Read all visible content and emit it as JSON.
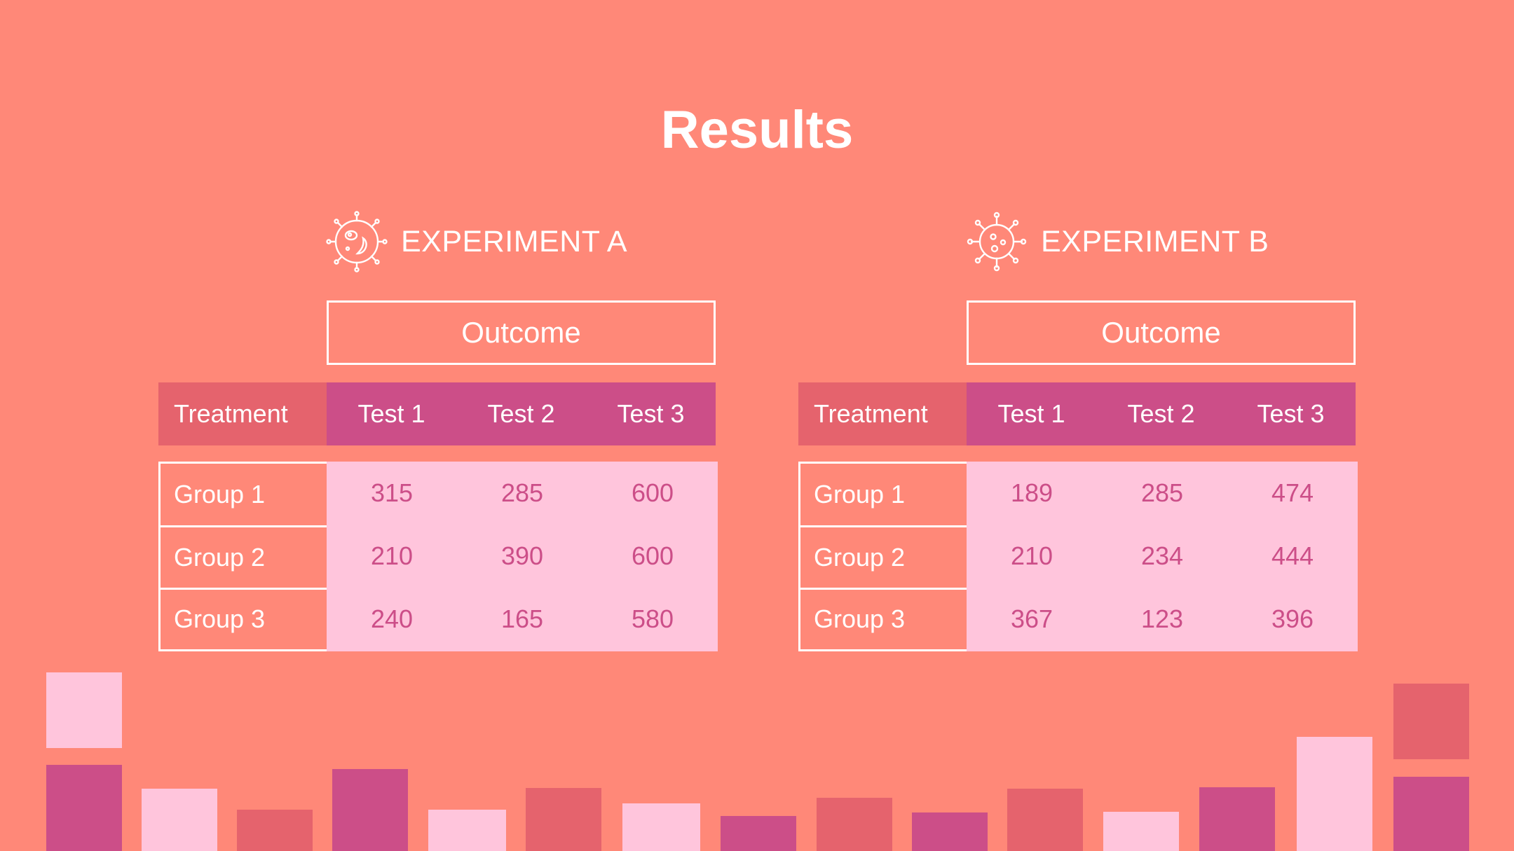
{
  "title": "Results",
  "colors": {
    "background": "#FF8878",
    "header_treatment": "#E5636D",
    "header_test": "#CC4E88",
    "value_cell_bg": "#FFC5DC",
    "value_text": "#CC4E88",
    "white": "#FFFFFF"
  },
  "experiments": [
    {
      "name": "EXPERIMENT A",
      "icon": "bacteria-icon",
      "outcome_label": "Outcome",
      "columns": [
        "Treatment",
        "Test 1",
        "Test 2",
        "Test 3"
      ],
      "rows": [
        {
          "group": "Group 1",
          "values": [
            "315",
            "285",
            "600"
          ]
        },
        {
          "group": "Group 2",
          "values": [
            "210",
            "390",
            "600"
          ]
        },
        {
          "group": "Group 3",
          "values": [
            "240",
            "165",
            "580"
          ]
        }
      ]
    },
    {
      "name": "EXPERIMENT B",
      "icon": "virus-icon",
      "outcome_label": "Outcome",
      "columns": [
        "Treatment",
        "Test 1",
        "Test 2",
        "Test 3"
      ],
      "rows": [
        {
          "group": "Group 1",
          "values": [
            "189",
            "285",
            "474"
          ]
        },
        {
          "group": "Group 2",
          "values": [
            "210",
            "234",
            "444"
          ]
        },
        {
          "group": "Group 3",
          "values": [
            "367",
            "123",
            "396"
          ]
        }
      ]
    }
  ]
}
